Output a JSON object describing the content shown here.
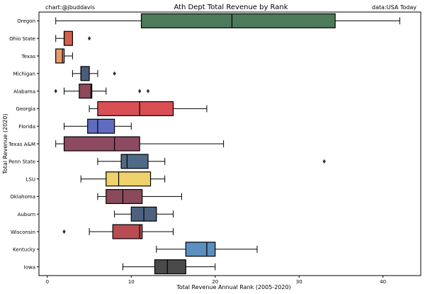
{
  "chart_data": {
    "type": "boxplot",
    "title": "Ath Dept Total Revenue by Rank",
    "credit_left": "chart:@jbuddavis",
    "credit_right": "data:USA Today",
    "xlabel": "Total Revenue Annual Rank (2005-2020)",
    "ylabel": "Total Revenue (2020)",
    "xlim": [
      -1,
      44.5
    ],
    "xticks": [
      0,
      10,
      20,
      30,
      40
    ],
    "grid": false,
    "categories": [
      "Oregon",
      "Ohio State",
      "Texas",
      "Michigan",
      "Alabama",
      "Georgia",
      "Florida",
      "Texas A&M",
      "Penn State",
      "LSU",
      "Oklahoma",
      "Auburn",
      "Wisconsin",
      "Kentucky",
      "Iowa"
    ],
    "boxes": [
      {
        "name": "Oregon",
        "color": "#4e7a5c",
        "whislo": 1,
        "q1": 11.2,
        "med": 22,
        "q3": 34.3,
        "whishi": 42,
        "fliers": []
      },
      {
        "name": "Ohio State",
        "color": "#d3604c",
        "whislo": 1,
        "q1": 2,
        "med": 2,
        "q3": 3,
        "whishi": 3,
        "fliers": [
          5
        ]
      },
      {
        "name": "Texas",
        "color": "#e89a6a",
        "whislo": 1,
        "q1": 1,
        "med": 1.8,
        "q3": 2,
        "whishi": 3,
        "fliers": []
      },
      {
        "name": "Michigan",
        "color": "#4a5d7a",
        "whislo": 3,
        "q1": 4,
        "med": 4,
        "q3": 5,
        "whishi": 6,
        "fliers": [
          8
        ]
      },
      {
        "name": "Alabama",
        "color": "#8f4a5a",
        "whislo": 2,
        "q1": 3.8,
        "med": 5.2,
        "q3": 5.3,
        "whishi": 7,
        "fliers": [
          1,
          11,
          12
        ]
      },
      {
        "name": "Georgia",
        "color": "#d84f55",
        "whislo": 5,
        "q1": 6,
        "med": 11,
        "q3": 15,
        "whishi": 19,
        "fliers": []
      },
      {
        "name": "Florida",
        "color": "#5f6cc0",
        "whislo": 2,
        "q1": 4.8,
        "med": 6,
        "q3": 8,
        "whishi": 10,
        "fliers": []
      },
      {
        "name": "Texas A&M",
        "color": "#8e4a62",
        "whislo": 1,
        "q1": 2,
        "med": 8,
        "q3": 11,
        "whishi": 21,
        "fliers": []
      },
      {
        "name": "Penn State",
        "color": "#4f6a86",
        "whislo": 6,
        "q1": 8.8,
        "med": 9.5,
        "q3": 12,
        "whishi": 14,
        "fliers": [
          33
        ]
      },
      {
        "name": "LSU",
        "color": "#efd26c",
        "whislo": 4,
        "q1": 7,
        "med": 8.5,
        "q3": 12.3,
        "whishi": 14,
        "fliers": []
      },
      {
        "name": "Oklahoma",
        "color": "#8a4a5c",
        "whislo": 6,
        "q1": 7,
        "med": 9,
        "q3": 11.3,
        "whishi": 16,
        "fliers": []
      },
      {
        "name": "Auburn",
        "color": "#4e6280",
        "whislo": 8,
        "q1": 10,
        "med": 11.5,
        "q3": 13,
        "whishi": 15,
        "fliers": []
      },
      {
        "name": "Wisconsin",
        "color": "#b84c52",
        "whislo": 5,
        "q1": 7.8,
        "med": 11,
        "q3": 11.3,
        "whishi": 15,
        "fliers": [
          2
        ]
      },
      {
        "name": "Kentucky",
        "color": "#5b8fc0",
        "whislo": 13,
        "q1": 16.5,
        "med": 19,
        "q3": 20,
        "whishi": 25,
        "fliers": []
      },
      {
        "name": "Iowa",
        "color": "#4a4a4a",
        "whislo": 9,
        "q1": 12.8,
        "med": 14.3,
        "q3": 16.5,
        "whishi": 20,
        "fliers": []
      }
    ]
  }
}
